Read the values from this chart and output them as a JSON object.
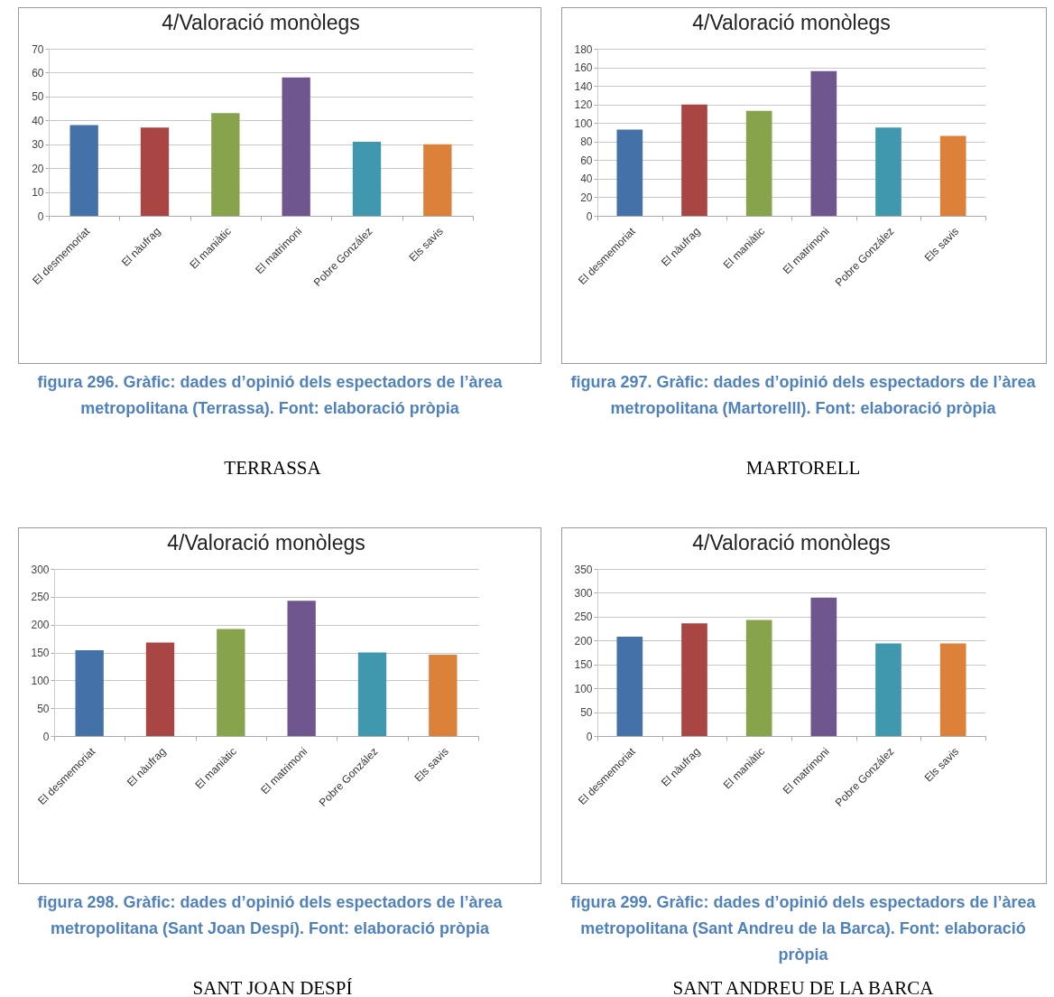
{
  "chart_data": [
    {
      "type": "bar",
      "title": "4/Valoració monòlegs",
      "categories": [
        "El desmemoriat",
        "El nàufrag",
        "El maniàtic",
        "El matrimoni",
        "Pobre González",
        "Els savis"
      ],
      "values": [
        38,
        37,
        43,
        58,
        31,
        30
      ],
      "colors": [
        "#4472a8",
        "#a94543",
        "#87a34b",
        "#6f568f",
        "#3f98ae",
        "#db8139"
      ],
      "ylim": [
        0,
        70
      ],
      "yticks": [
        0,
        10,
        20,
        30,
        40,
        50,
        60,
        70
      ],
      "grid": "y",
      "annotations": [
        "figura 296. Gràfic: dades d’opinió dels espectadors de l’àrea metropolitana (Terrassa). Font: elaboració pròpia",
        "TERRASSA"
      ]
    },
    {
      "type": "bar",
      "title": "4/Valoració monòlegs",
      "categories": [
        "El desmemoriat",
        "El nàufrag",
        "El maniàtic",
        "El matrimoni",
        "Pobre González",
        "Els savis"
      ],
      "values": [
        93,
        120,
        113,
        156,
        95,
        86
      ],
      "colors": [
        "#4472a8",
        "#a94543",
        "#87a34b",
        "#6f568f",
        "#3f98ae",
        "#db8139"
      ],
      "ylim": [
        0,
        180
      ],
      "yticks": [
        0,
        20,
        40,
        60,
        80,
        100,
        120,
        140,
        160,
        180
      ],
      "grid": "y",
      "annotations": [
        "figura 297. Gràfic: dades d’opinió dels espectadors de l’àrea metropolitana (Martorelll). Font: elaboració pròpia",
        "MARTORELL"
      ]
    },
    {
      "type": "bar",
      "title": "4/Valoració monòlegs",
      "categories": [
        "El desmemoriat",
        "El nàufrag",
        "El maniàtic",
        "El matrimoni",
        "Pobre González",
        "Els savis"
      ],
      "values": [
        154,
        168,
        192,
        243,
        150,
        146
      ],
      "colors": [
        "#4472a8",
        "#a94543",
        "#87a34b",
        "#6f568f",
        "#3f98ae",
        "#db8139"
      ],
      "ylim": [
        0,
        300
      ],
      "yticks": [
        0,
        50,
        100,
        150,
        200,
        250,
        300
      ],
      "grid": "y",
      "annotations": [
        "figura 298. Gràfic: dades d’opinió dels espectadors de l’àrea metropolitana (Sant Joan Despí). Font: elaboració pròpia",
        "SANT JOAN DESPÍ"
      ]
    },
    {
      "type": "bar",
      "title": "4/Valoració monòlegs",
      "categories": [
        "El desmemoriat",
        "El nàufrag",
        "El maniàtic",
        "El matrimoni",
        "Pobre González",
        "Els savis"
      ],
      "values": [
        208,
        236,
        243,
        290,
        194,
        194
      ],
      "colors": [
        "#4472a8",
        "#a94543",
        "#87a34b",
        "#6f568f",
        "#3f98ae",
        "#db8139"
      ],
      "ylim": [
        0,
        350
      ],
      "yticks": [
        0,
        50,
        100,
        150,
        200,
        250,
        300,
        350
      ],
      "grid": "y",
      "annotations": [
        "figura 299. Gràfic: dades d’opinió dels espectadors de l’àrea metropolitana (Sant Andreu de la Barca). Font: elaboració pròpia",
        "SANT ANDREU DE LA BARCA"
      ]
    }
  ]
}
